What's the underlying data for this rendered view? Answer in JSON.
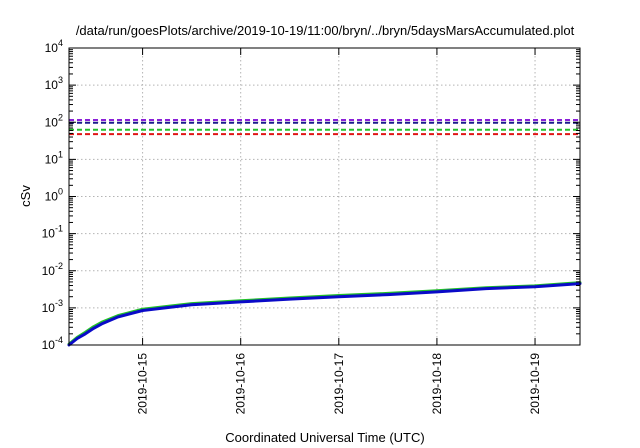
{
  "chart_data": {
    "type": "line",
    "title": "/data/run/goesPlots/archive/2019-10-19/11:00/bryn/../bryn/5daysMarsAccumulated.plot",
    "xlabel": "Coordinated Universal Time (UTC)",
    "ylabel": "cSv",
    "y_scale": "log",
    "ylim": [
      0.0001,
      10000
    ],
    "xlim": [
      "2019-10-14T06:00",
      "2019-10-19T11:00"
    ],
    "grid": true,
    "y_ticks": [
      {
        "base": "10",
        "exp": "-4"
      },
      {
        "base": "10",
        "exp": "-3"
      },
      {
        "base": "10",
        "exp": "-2"
      },
      {
        "base": "10",
        "exp": "-1"
      },
      {
        "base": "10",
        "exp": "0"
      },
      {
        "base": "10",
        "exp": "1"
      },
      {
        "base": "10",
        "exp": "2"
      },
      {
        "base": "10",
        "exp": "3"
      },
      {
        "base": "10",
        "exp": "4"
      }
    ],
    "x_ticks": [
      "2019-10-15",
      "2019-10-16",
      "2019-10-17",
      "2019-10-18",
      "2019-10-19"
    ],
    "series": [
      {
        "color": "#22c02a",
        "style": "solid",
        "x": [
          "2019-10-14T06:00",
          "2019-10-14T08:00",
          "2019-10-14T10:00",
          "2019-10-14T12:00",
          "2019-10-14T14:00",
          "2019-10-14T18:00",
          "2019-10-15T00:00",
          "2019-10-15T12:00",
          "2019-10-16T00:00",
          "2019-10-16T12:00",
          "2019-10-17T00:00",
          "2019-10-17T12:00",
          "2019-10-18T00:00",
          "2019-10-18T12:00",
          "2019-10-19T00:00",
          "2019-10-19T11:00"
        ],
        "values": [
          0.000105,
          0.00016,
          0.00022,
          0.00031,
          0.00041,
          0.00062,
          0.00092,
          0.0013,
          0.00155,
          0.00185,
          0.00215,
          0.00245,
          0.0029,
          0.0035,
          0.0039,
          0.0048
        ]
      },
      {
        "color": "#0a0ac8",
        "style": "solid",
        "x": [
          "2019-10-14T06:00",
          "2019-10-14T08:00",
          "2019-10-14T10:00",
          "2019-10-14T12:00",
          "2019-10-14T14:00",
          "2019-10-14T18:00",
          "2019-10-15T00:00",
          "2019-10-15T12:00",
          "2019-10-16T00:00",
          "2019-10-16T12:00",
          "2019-10-17T00:00",
          "2019-10-17T12:00",
          "2019-10-18T00:00",
          "2019-10-18T12:00",
          "2019-10-19T00:00",
          "2019-10-19T11:00"
        ],
        "values": [
          0.0001,
          0.00015,
          0.0002,
          0.00028,
          0.00037,
          0.00057,
          0.00085,
          0.00122,
          0.00145,
          0.00172,
          0.002,
          0.00228,
          0.0027,
          0.0033,
          0.0037,
          0.0045
        ]
      },
      {
        "color": "#8a1fd8",
        "style": "dashed",
        "x": [
          "2019-10-14T06:00",
          "2019-10-19T11:00"
        ],
        "values": [
          115,
          115
        ]
      },
      {
        "color": "#1a1a8c",
        "style": "dashed",
        "x": [
          "2019-10-14T06:00",
          "2019-10-19T11:00"
        ],
        "values": [
          97,
          97
        ]
      },
      {
        "color": "#22c02a",
        "style": "dashed",
        "x": [
          "2019-10-14T06:00",
          "2019-10-19T11:00"
        ],
        "values": [
          63,
          63
        ]
      },
      {
        "color": "#e01515",
        "style": "dashed",
        "x": [
          "2019-10-14T06:00",
          "2019-10-19T11:00"
        ],
        "values": [
          48,
          48
        ]
      }
    ]
  }
}
